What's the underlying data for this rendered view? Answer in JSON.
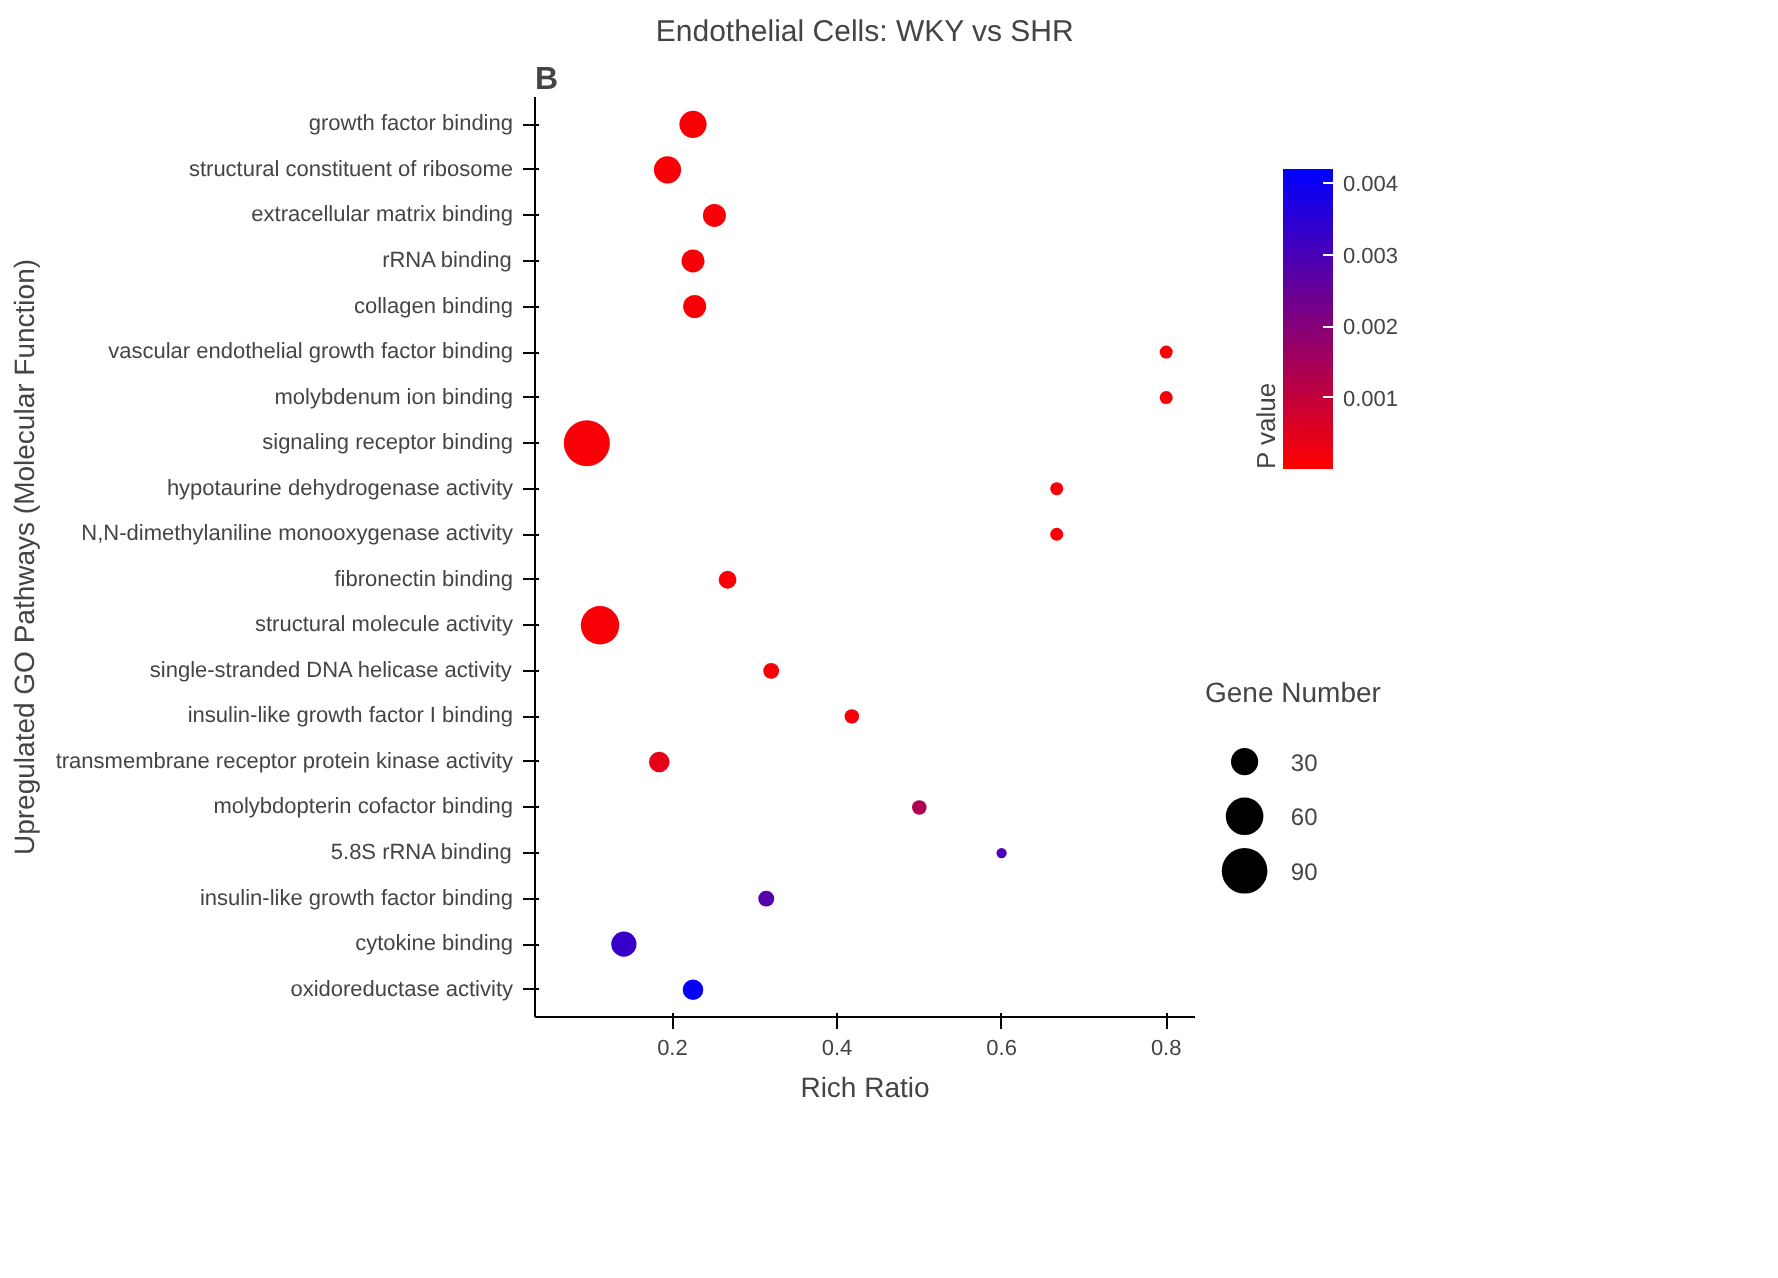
{
  "chart_data": {
    "type": "bubble",
    "title": "Endothelial Cells: WKY vs SHR",
    "xlabel": "Rich Ratio",
    "ylabel": "Upregulated GO Pathways (Molecular Function)",
    "legend_title": "Gene Number",
    "clabel": "P value",
    "annotations": [
      "B"
    ],
    "categories": [
      "growth factor binding",
      "structural constituent of ribosome",
      "extracellular matrix binding",
      "rRNA binding",
      "collagen binding",
      "vascular endothelial growth factor binding",
      "molybdenum ion binding",
      "signaling receptor binding",
      "hypotaurine dehydrogenase activity",
      "N,N-dimethylaniline monooxygenase activity",
      "fibronectin binding",
      "structural molecule activity",
      "single-stranded DNA helicase activity",
      "insulin-like growth factor I binding",
      "transmembrane receptor protein kinase activity",
      "molybdopterin cofactor binding",
      "5.8S rRNA binding",
      "insulin-like growth factor binding",
      "cytokine binding",
      "oxidoreductase activity"
    ],
    "values": [
      0.225,
      0.194,
      0.251,
      0.225,
      0.227,
      0.8,
      0.8,
      0.096,
      0.667,
      0.667,
      0.267,
      0.112,
      0.32,
      0.418,
      0.184,
      0.5,
      0.6,
      0.314,
      0.141,
      0.225
    ],
    "sizes": [
      35,
      35,
      25,
      25,
      25,
      8,
      8,
      100,
      8,
      8,
      15,
      70,
      12,
      10,
      20,
      10,
      5,
      12,
      30,
      20
    ],
    "size_legend": [
      30,
      60,
      90
    ],
    "cvalues": [
      0.0001,
      0.0001,
      0.0001,
      0.0001,
      0.0001,
      0.0001,
      0.0001,
      0.0001,
      0.0001,
      0.0001,
      0.0001,
      0.0001,
      0.0001,
      0.0002,
      0.0004,
      0.0013,
      0.003,
      0.0028,
      0.0033,
      0.0041
    ],
    "clim": [
      0,
      0.0042
    ],
    "cticks": [
      0.001,
      0.002,
      0.003,
      0.004
    ],
    "xlim": [
      0.033,
      0.835
    ],
    "xticks": [
      0.2,
      0.4,
      0.6,
      0.8
    ],
    "orientation": "horizontal",
    "grid": false
  }
}
